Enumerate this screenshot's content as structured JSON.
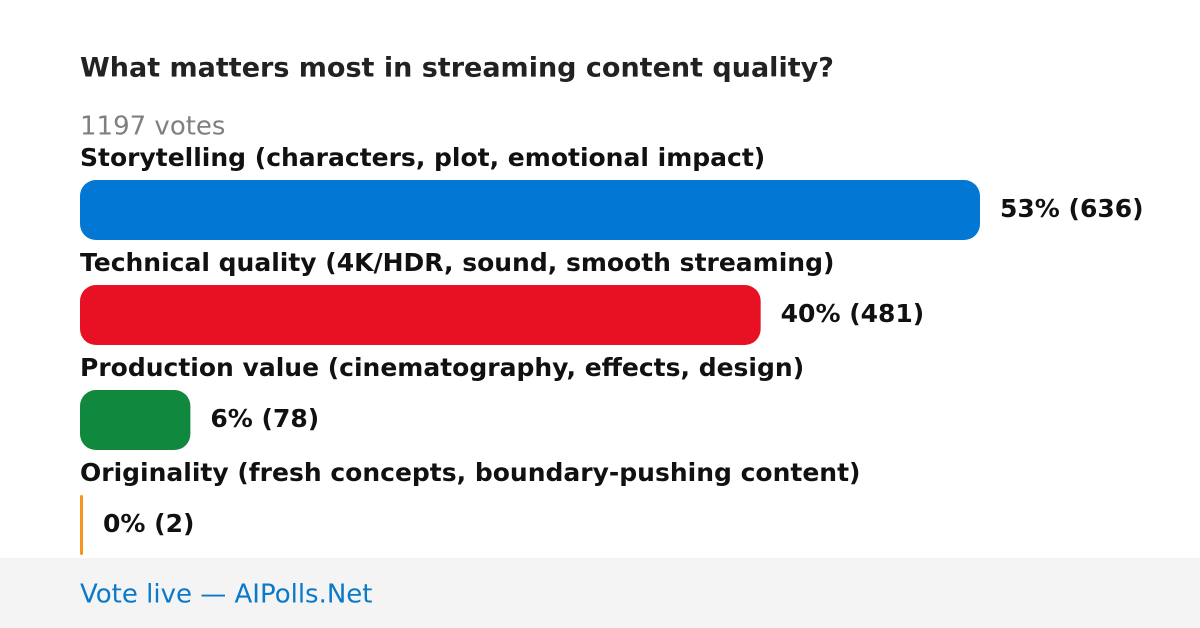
{
  "chart_data": {
    "type": "bar",
    "title": "What matters most in streaming content quality?",
    "subtitle": "1197 votes",
    "categories": [
      "Storytelling (characters, plot, emotional impact)",
      "Technical quality (4K/HDR, sound, smooth streaming)",
      "Production value (cinematography, effects, design)",
      "Originality (fresh concepts, boundary-pushing content)"
    ],
    "values": [
      636,
      481,
      78,
      2
    ],
    "value_labels": [
      "53% (636)",
      "40% (481)",
      "6% (78)",
      "0% (2)"
    ],
    "colors": [
      "#0277d4",
      "#e81123",
      "#10893e",
      "#f7941d"
    ]
  },
  "footer": "Vote live — AIPolls.Net"
}
